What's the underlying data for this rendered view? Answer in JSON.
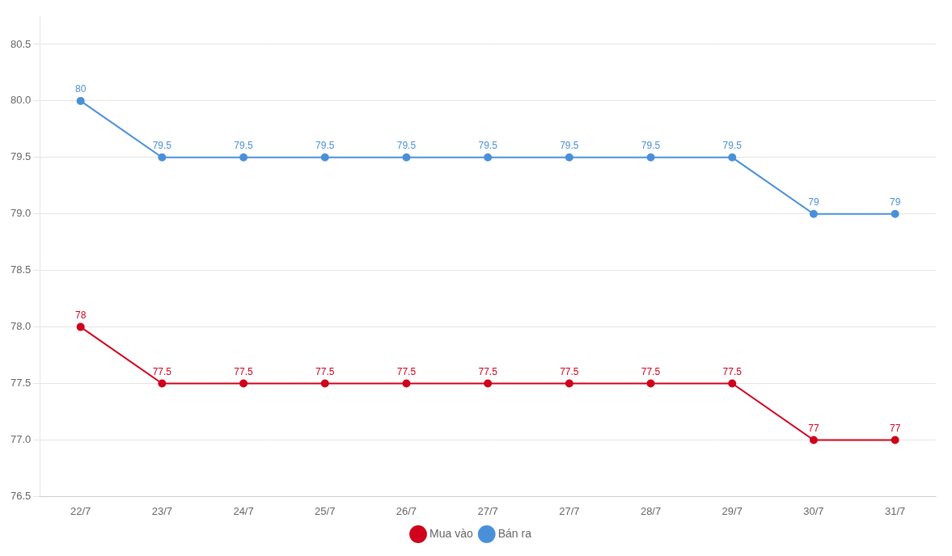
{
  "chart_data": {
    "type": "line",
    "categories": [
      "22/7",
      "23/7",
      "24/7",
      "25/7",
      "26/7",
      "27/7",
      "27/7",
      "28/7",
      "29/7",
      "30/7",
      "31/7"
    ],
    "series": [
      {
        "name": "Bán ra",
        "color": "#4a90d9",
        "marker": "circle",
        "values": [
          80,
          79.5,
          79.5,
          79.5,
          79.5,
          79.5,
          79.5,
          79.5,
          79.5,
          79,
          79
        ]
      },
      {
        "name": "Mua vào",
        "color": "#d0021b",
        "marker": "circle",
        "values": [
          78,
          77.5,
          77.5,
          77.5,
          77.5,
          77.5,
          77.5,
          77.5,
          77.5,
          77,
          77
        ]
      }
    ],
    "ylim": [
      76.5,
      80.75
    ],
    "yticks": [
      76.5,
      {
        "value": 77,
        "label": "77.0"
      },
      77.5,
      {
        "value": 78,
        "label": "78.0"
      },
      78.5,
      {
        "value": 79,
        "label": "79.0"
      },
      79.5,
      {
        "value": 80,
        "label": "80.0"
      },
      80.5
    ],
    "grid": true,
    "legend": "bottom",
    "data_labels": true
  }
}
